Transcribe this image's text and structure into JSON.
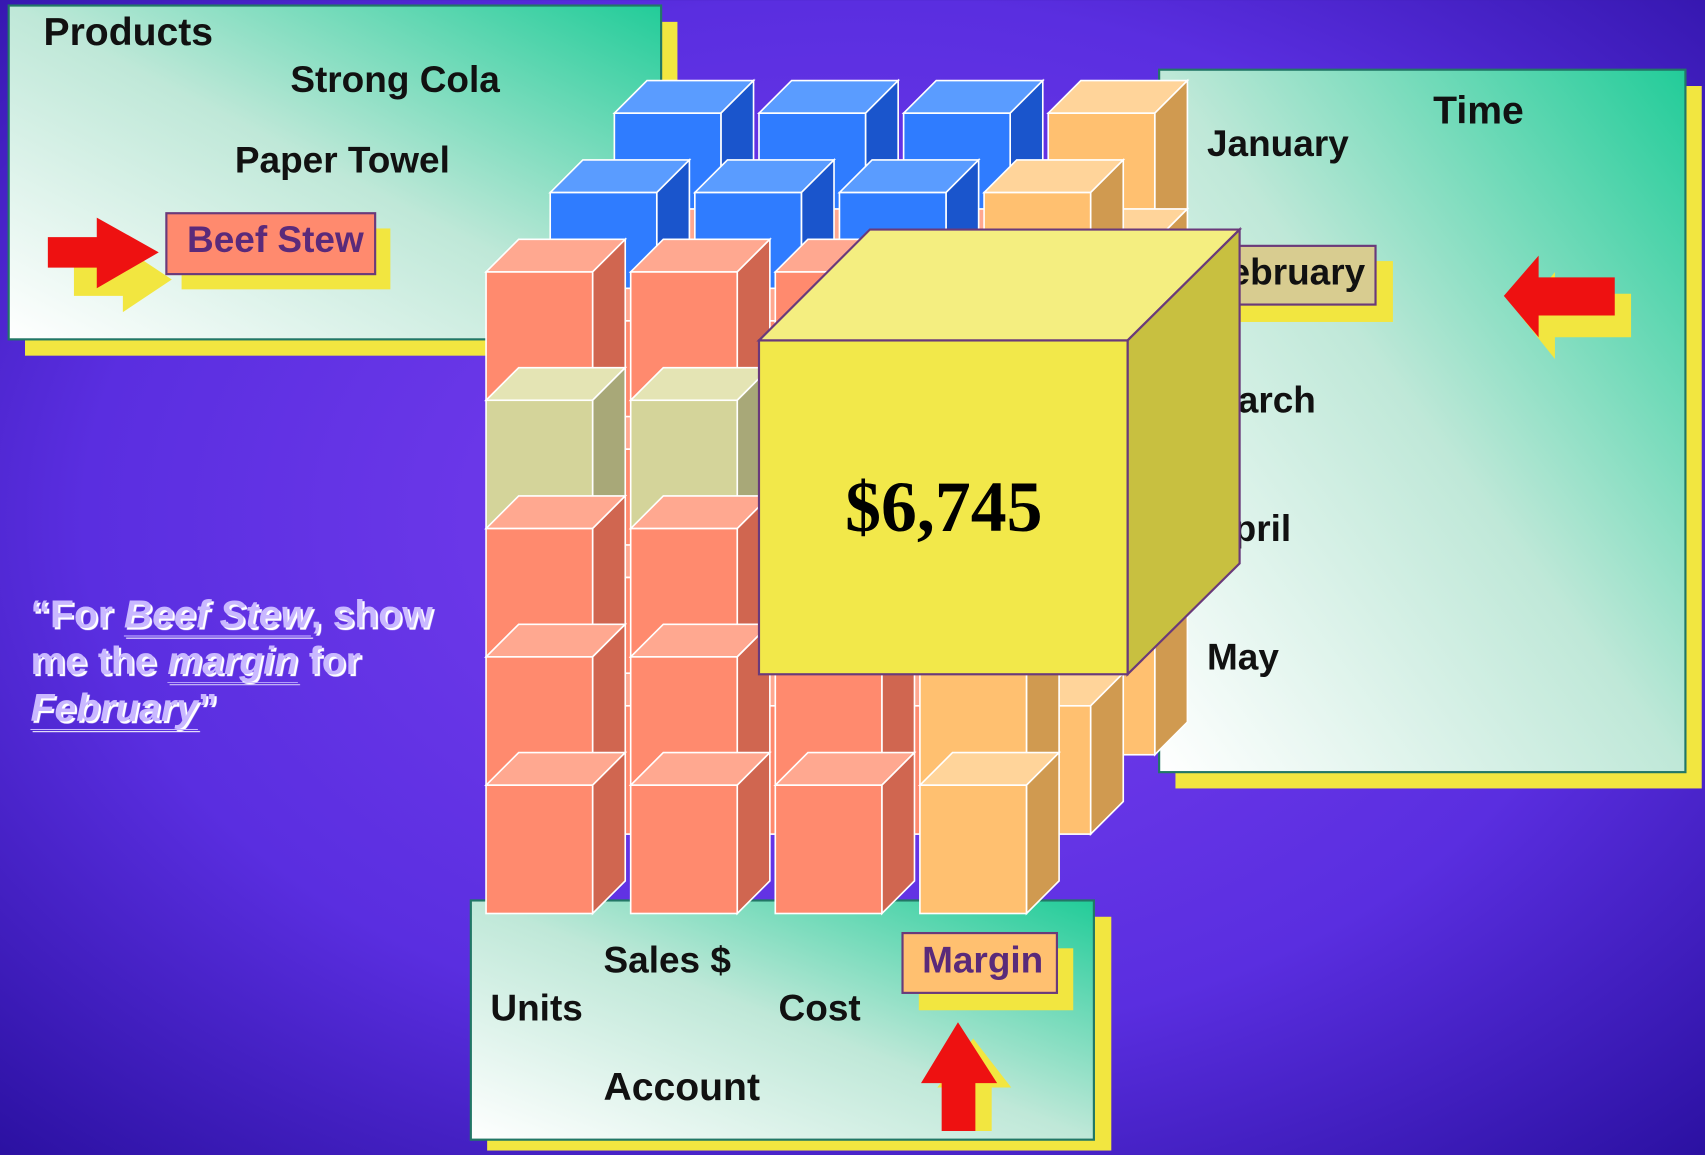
{
  "products": {
    "title": "Products",
    "items": [
      "Strong Cola",
      "Paper Towel",
      "Beef Stew"
    ]
  },
  "time": {
    "title": "Time",
    "items": [
      "January",
      "February",
      "March",
      "April",
      "May"
    ]
  },
  "account": {
    "title": "Account",
    "items": [
      "Sales $",
      "Units",
      "Cost",
      "Margin"
    ]
  },
  "cell_value": "$6,745",
  "quote": {
    "lines": [
      [
        "“For ",
        "Beef Stew",
        ", show"
      ],
      [
        "me the ",
        "margin",
        " for"
      ],
      [
        "February",
        "”"
      ]
    ]
  }
}
